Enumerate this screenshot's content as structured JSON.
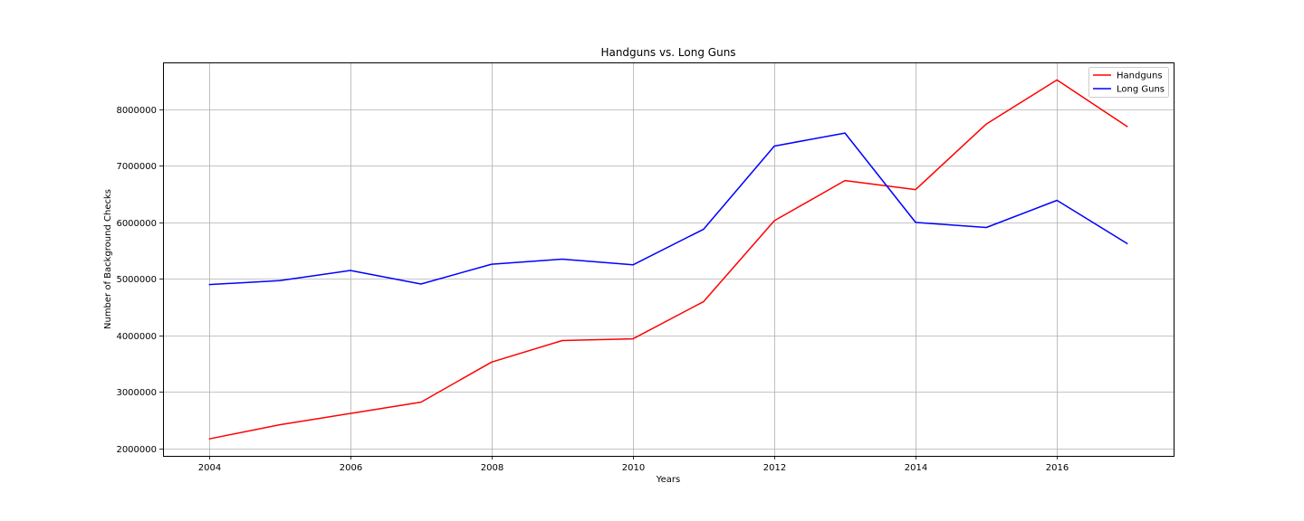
{
  "chart_data": {
    "type": "line",
    "title": "Handguns vs. Long Guns",
    "xlabel": "Years",
    "ylabel": "Number of Background Checks",
    "x": [
      2004,
      2005,
      2006,
      2007,
      2008,
      2009,
      2010,
      2011,
      2012,
      2013,
      2014,
      2015,
      2016,
      2017
    ],
    "x_ticks": [
      2004,
      2006,
      2008,
      2010,
      2012,
      2014,
      2016
    ],
    "x_tick_labels": [
      "2004",
      "2006",
      "2008",
      "2010",
      "2012",
      "2014",
      "2016"
    ],
    "y_ticks": [
      2000000,
      3000000,
      4000000,
      5000000,
      6000000,
      7000000,
      8000000
    ],
    "y_tick_labels": [
      "2000000",
      "3000000",
      "4000000",
      "5000000",
      "6000000",
      "7000000",
      "8000000"
    ],
    "xlim": [
      2003.35,
      2017.65
    ],
    "ylim": [
      1870000,
      8830000
    ],
    "grid": true,
    "legend_position": "top-right",
    "series": [
      {
        "name": "Handguns",
        "color": "#ff0000",
        "values": [
          2170000,
          2420000,
          2620000,
          2820000,
          3530000,
          3910000,
          3940000,
          4600000,
          6030000,
          6740000,
          6580000,
          7740000,
          8520000,
          7690000
        ]
      },
      {
        "name": "Long Guns",
        "color": "#0000ff",
        "values": [
          4900000,
          4970000,
          5150000,
          4910000,
          5260000,
          5350000,
          5250000,
          5880000,
          7350000,
          7580000,
          6000000,
          5910000,
          6390000,
          5620000
        ]
      }
    ]
  }
}
